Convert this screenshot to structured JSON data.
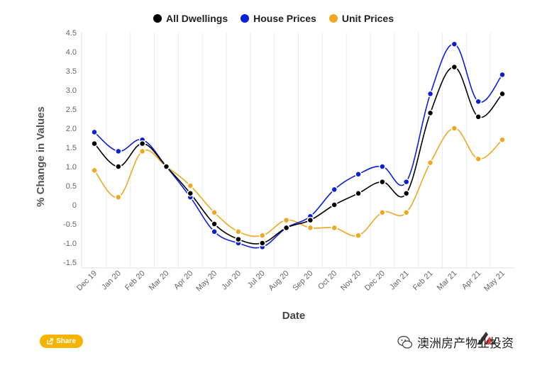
{
  "chart_data": {
    "type": "line",
    "xlabel": "Date",
    "ylabel": "% Change in Values",
    "ylim": [
      -1.5,
      4.5
    ],
    "yticks": [
      "4.5",
      "4.0",
      "3.5",
      "3.0",
      "2.5",
      "2.0",
      "1.5",
      "1.0",
      "0.5",
      "0",
      "-0.5",
      "-1.0",
      "-1.5"
    ],
    "ytick_values": [
      4.5,
      4.0,
      3.5,
      3.0,
      2.5,
      2.0,
      1.5,
      1.0,
      0.5,
      0,
      -0.5,
      -1.0,
      -1.5
    ],
    "categories": [
      "Dec 19",
      "Jan 20",
      "Feb 20",
      "Mar 20",
      "Apr 20",
      "May 20",
      "Jun 20",
      "Jul 20",
      "Aug 20",
      "Sep 20",
      "Oct 20",
      "Nov 20",
      "Dec 20",
      "Jan 21",
      "Feb 21",
      "Mar 21",
      "Apr 21",
      "May 21"
    ],
    "legend_position": "top-center",
    "grid": "vertical",
    "series": [
      {
        "name": "All Dwellings",
        "color": "#000000",
        "values": [
          1.6,
          1.0,
          1.6,
          1.0,
          0.3,
          -0.5,
          -0.9,
          -1.0,
          -0.6,
          -0.4,
          0.0,
          0.3,
          0.6,
          0.3,
          2.4,
          3.6,
          2.3,
          2.9
        ]
      },
      {
        "name": "House Prices",
        "color": "#0a1fd8",
        "values": [
          1.9,
          1.4,
          1.7,
          1.0,
          0.2,
          -0.7,
          -1.0,
          -1.1,
          -0.6,
          -0.3,
          0.4,
          0.8,
          1.0,
          0.6,
          2.9,
          4.2,
          2.7,
          3.4
        ]
      },
      {
        "name": "Unit Prices",
        "color": "#f0a823",
        "values": [
          0.9,
          0.2,
          1.4,
          1.0,
          0.5,
          -0.2,
          -0.7,
          -0.8,
          -0.4,
          -0.6,
          -0.6,
          -0.8,
          -0.2,
          -0.2,
          1.1,
          2.0,
          1.2,
          1.7
        ]
      }
    ]
  },
  "share": {
    "label": "Share",
    "icon": "share-icon"
  },
  "watermark": {
    "text": "澳洲房产物业投资"
  }
}
